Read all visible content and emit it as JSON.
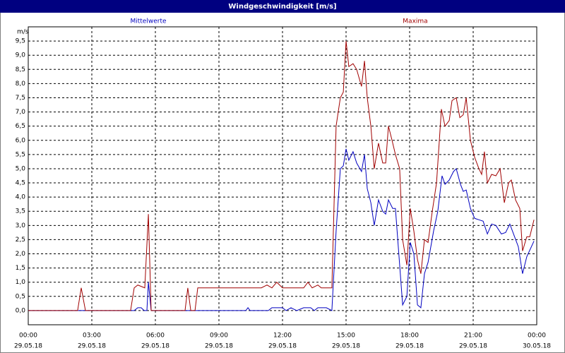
{
  "chart_data": {
    "type": "line",
    "title": "Windgeschwindigkeit [m/s]",
    "y_label": "m/s",
    "xlim": [
      0,
      24
    ],
    "ylim": [
      -0.5,
      10
    ],
    "xticks": [
      {
        "value": 0,
        "label": "00:00"
      },
      {
        "value": 3,
        "label": "03:00"
      },
      {
        "value": 6,
        "label": "06:00"
      },
      {
        "value": 9,
        "label": "09:00"
      },
      {
        "value": 12,
        "label": "12:00"
      },
      {
        "value": 15,
        "label": "15:00"
      },
      {
        "value": 18,
        "label": "18:00"
      },
      {
        "value": 21,
        "label": "21:00"
      },
      {
        "value": 24,
        "label": "00:00"
      }
    ],
    "xtick_dates": [
      "29.05.18",
      "29.05.18",
      "29.05.18",
      "29.05.18",
      "29.05.18",
      "29.05.18",
      "29.05.18",
      "29.05.18",
      "30.05.18"
    ],
    "yticks": [
      {
        "value": 0,
        "label": "0,0"
      },
      {
        "value": 0.5,
        "label": "0,5"
      },
      {
        "value": 1,
        "label": "1,0"
      },
      {
        "value": 1.5,
        "label": "1,5"
      },
      {
        "value": 2,
        "label": "2,0"
      },
      {
        "value": 2.5,
        "label": "2,5"
      },
      {
        "value": 3,
        "label": "3,0"
      },
      {
        "value": 3.5,
        "label": "3,5"
      },
      {
        "value": 4,
        "label": "4,0"
      },
      {
        "value": 4.5,
        "label": "4,5"
      },
      {
        "value": 5,
        "label": "5,0"
      },
      {
        "value": 5.5,
        "label": "5,5"
      },
      {
        "value": 6,
        "label": "6,0"
      },
      {
        "value": 6.5,
        "label": "6,5"
      },
      {
        "value": 7,
        "label": "7,0"
      },
      {
        "value": 7.5,
        "label": "7,5"
      },
      {
        "value": 8,
        "label": "8,0"
      },
      {
        "value": 8.5,
        "label": "8,5"
      },
      {
        "value": 9,
        "label": "9,0"
      },
      {
        "value": 9.5,
        "label": "9,5"
      }
    ],
    "grid": true,
    "series": [
      {
        "name": "Mittelwerte",
        "color": "#0000c0",
        "x": [
          0,
          5.0,
          5.17,
          5.33,
          5.47,
          5.6,
          5.67,
          5.8,
          10.27,
          10.37,
          10.47,
          11.33,
          11.5,
          12.0,
          12.17,
          12.4,
          12.67,
          13.0,
          13.33,
          13.5,
          13.67,
          14.07,
          14.33,
          14.53,
          14.73,
          14.87,
          15.0,
          15.13,
          15.33,
          15.5,
          15.73,
          15.87,
          16.0,
          16.17,
          16.33,
          16.53,
          16.73,
          16.87,
          17.0,
          17.2,
          17.33,
          17.53,
          17.67,
          17.87,
          18.03,
          18.2,
          18.37,
          18.53,
          18.7,
          18.87,
          19.13,
          19.33,
          19.53,
          19.67,
          19.87,
          20.07,
          20.2,
          20.4,
          20.53,
          20.67,
          20.87,
          21.07,
          21.27,
          21.47,
          21.67,
          21.87,
          22.07,
          22.33,
          22.53,
          22.73,
          22.93,
          23.13,
          23.33,
          23.53,
          23.87
        ],
        "values": [
          0,
          0,
          0.1,
          0.1,
          0,
          0,
          1.0,
          0,
          0,
          0.1,
          0,
          0,
          0.1,
          0.1,
          0,
          0.1,
          0,
          0.1,
          0.1,
          0,
          0.1,
          0.1,
          0,
          2.8,
          5.0,
          5.1,
          5.7,
          5.3,
          5.6,
          5.2,
          4.9,
          5.5,
          4.3,
          3.8,
          3.0,
          3.9,
          3.5,
          3.4,
          3.9,
          3.6,
          3.6,
          1.6,
          0.2,
          0.5,
          2.4,
          2.0,
          0.2,
          0.1,
          1.3,
          1.7,
          2.8,
          3.5,
          4.75,
          4.45,
          4.6,
          4.9,
          5.0,
          4.45,
          4.2,
          4.25,
          3.6,
          3.25,
          3.2,
          3.15,
          2.7,
          3.05,
          3.0,
          2.7,
          2.75,
          3.05,
          2.65,
          2.25,
          1.3,
          1.9,
          2.45
        ]
      },
      {
        "name": "Maxima",
        "color": "#a00000",
        "x": [
          0,
          2.33,
          2.5,
          2.7,
          4.83,
          5.0,
          5.17,
          5.5,
          5.67,
          5.8,
          7.4,
          7.53,
          7.67,
          7.87,
          8.0,
          11.0,
          11.27,
          11.5,
          11.73,
          12.0,
          13.0,
          13.2,
          13.4,
          13.67,
          13.83,
          14.33,
          14.53,
          14.73,
          14.87,
          15.0,
          15.13,
          15.33,
          15.5,
          15.73,
          15.87,
          16.0,
          16.17,
          16.33,
          16.53,
          16.73,
          16.87,
          17.0,
          17.17,
          17.33,
          17.53,
          17.67,
          17.87,
          18.03,
          18.2,
          18.37,
          18.53,
          18.7,
          18.87,
          19.07,
          19.27,
          19.5,
          19.67,
          19.87,
          20.0,
          20.2,
          20.37,
          20.53,
          20.67,
          20.87,
          21.07,
          21.27,
          21.4,
          21.53,
          21.67,
          21.87,
          22.07,
          22.27,
          22.47,
          22.67,
          22.8,
          23.0,
          23.2,
          23.33,
          23.53,
          23.67,
          23.87
        ],
        "values": [
          0,
          0,
          0.8,
          0,
          0,
          0.8,
          0.9,
          0.8,
          3.4,
          0,
          0,
          0.8,
          0,
          0,
          0.8,
          0.8,
          0.9,
          0.8,
          1.0,
          0.8,
          0.8,
          1.0,
          0.8,
          0.9,
          0.8,
          0.8,
          6.5,
          7.5,
          7.7,
          9.5,
          8.6,
          8.7,
          8.5,
          7.9,
          8.8,
          7.5,
          6.5,
          5.0,
          5.9,
          5.2,
          5.2,
          6.5,
          6.0,
          5.5,
          5.0,
          2.5,
          1.6,
          3.6,
          2.8,
          1.8,
          1.3,
          2.5,
          2.4,
          3.5,
          4.5,
          7.1,
          6.5,
          6.7,
          7.4,
          7.5,
          6.8,
          6.9,
          7.5,
          6.0,
          5.4,
          5.0,
          4.8,
          5.6,
          4.5,
          4.8,
          4.75,
          5.0,
          3.8,
          4.5,
          4.6,
          3.9,
          3.6,
          2.1,
          2.6,
          2.6,
          3.2
        ]
      }
    ]
  }
}
